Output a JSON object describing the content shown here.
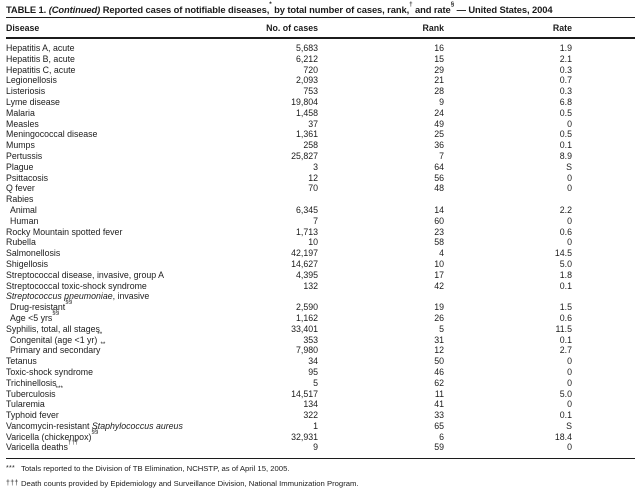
{
  "colors": {
    "background": "#ffffff",
    "text": "#1c1c1c",
    "rule": "#1c1c1c"
  },
  "title": {
    "label": "TABLE 1. ",
    "continued": "(Continued)",
    "part2": " Reported cases of notifiable diseases,",
    "sup1": "*",
    "part3": " by total number of cases, rank,",
    "sup2": "†",
    "part4": " and rate",
    "sup3": "§",
    "part5": " — United States, 2004"
  },
  "columns": {
    "disease": "Disease",
    "cases": "No. of cases",
    "rank": "Rank",
    "rate": "Rate"
  },
  "rows": [
    {
      "pre": "Hepatitis A, acute",
      "cases": "5,683",
      "rank": "16",
      "rate": "1.9"
    },
    {
      "pre": "Hepatitis B, acute",
      "cases": "6,212",
      "rank": "15",
      "rate": "2.1"
    },
    {
      "pre": "Hepatitis C, acute",
      "cases": "720",
      "rank": "29",
      "rate": "0.3"
    },
    {
      "pre": "Legionellosis",
      "cases": "2,093",
      "rank": "21",
      "rate": "0.7"
    },
    {
      "pre": "Listeriosis",
      "cases": "753",
      "rank": "28",
      "rate": "0.3"
    },
    {
      "pre": "Lyme disease",
      "cases": "19,804",
      "rank": "9",
      "rate": "6.8"
    },
    {
      "pre": "Malaria",
      "cases": "1,458",
      "rank": "24",
      "rate": "0.5"
    },
    {
      "pre": "Measles",
      "cases": "37",
      "rank": "49",
      "rate": "0"
    },
    {
      "pre": "Meningococcal disease",
      "cases": "1,361",
      "rank": "25",
      "rate": "0.5"
    },
    {
      "pre": "Mumps",
      "cases": "258",
      "rank": "36",
      "rate": "0.1"
    },
    {
      "pre": "Pertussis",
      "cases": "25,827",
      "rank": "7",
      "rate": "8.9"
    },
    {
      "pre": "Plague",
      "cases": "3",
      "rank": "64",
      "rate": "S"
    },
    {
      "pre": "Psittacosis",
      "cases": "12",
      "rank": "56",
      "rate": "0"
    },
    {
      "pre": "Q fever",
      "cases": "70",
      "rank": "48",
      "rate": "0"
    },
    {
      "pre": "Rabies",
      "cases": "",
      "rank": "",
      "rate": ""
    },
    {
      "pre": "Animal",
      "indent": 1,
      "cases": "6,345",
      "rank": "14",
      "rate": "2.2"
    },
    {
      "pre": "Human",
      "indent": 1,
      "cases": "7",
      "rank": "60",
      "rate": "0"
    },
    {
      "pre": "Rocky Mountain spotted fever",
      "cases": "1,713",
      "rank": "23",
      "rate": "0.6"
    },
    {
      "pre": "Rubella",
      "cases": "10",
      "rank": "58",
      "rate": "0"
    },
    {
      "pre": "Salmonellosis",
      "cases": "42,197",
      "rank": "4",
      "rate": "14.5"
    },
    {
      "pre": "Shigellosis",
      "cases": "14,627",
      "rank": "10",
      "rate": "5.0"
    },
    {
      "pre": "Streptococcal disease, invasive, group A",
      "cases": "4,395",
      "rank": "17",
      "rate": "1.8"
    },
    {
      "pre": "Streptococcal toxic-shock syndrome",
      "cases": "132",
      "rank": "42",
      "rate": "0.1"
    },
    {
      "italic": "Streptococcus pneumoniae",
      "post": ", invasive",
      "cases": "",
      "rank": "",
      "rate": ""
    },
    {
      "pre": "Drug-resistant",
      "sup": "§§",
      "indent": 1,
      "cases": "2,590",
      "rank": "19",
      "rate": "1.5"
    },
    {
      "pre": "Age <5 yrs",
      "sup": "§§",
      "indent": 1,
      "cases": "1,162",
      "rank": "26",
      "rate": "0.6"
    },
    {
      "pre": "Syphilis, total, all stages",
      "cases": "33,401",
      "rank": "5",
      "rate": "11.5"
    },
    {
      "pre": "Congenital (age <1 yr)",
      "sup": "**",
      "indent": 1,
      "cases": "353",
      "rank": "31",
      "rate": "0.1"
    },
    {
      "pre": "Primary and secondary",
      "sup": "**",
      "indent": 1,
      "cases": "7,980",
      "rank": "12",
      "rate": "2.7"
    },
    {
      "pre": "Tetanus",
      "cases": "34",
      "rank": "50",
      "rate": "0"
    },
    {
      "pre": "Toxic-shock syndrome",
      "cases": "95",
      "rank": "46",
      "rate": "0"
    },
    {
      "pre": "Trichinellosis",
      "cases": "5",
      "rank": "62",
      "rate": "0"
    },
    {
      "pre": "Tuberculosis",
      "sup": "***",
      "cases": "14,517",
      "rank": "11",
      "rate": "5.0"
    },
    {
      "pre": "Tularemia",
      "cases": "134",
      "rank": "41",
      "rate": "0"
    },
    {
      "pre": "Typhoid fever",
      "cases": "322",
      "rank": "33",
      "rate": "0.1"
    },
    {
      "pre": "Vancomycin-resistant ",
      "italic": "Staphylococcus aureus",
      "cases": "1",
      "rank": "65",
      "rate": "S"
    },
    {
      "pre": "Varicella (chickenpox)",
      "sup": "§§",
      "cases": "32,931",
      "rank": "6",
      "rate": "18.4"
    },
    {
      "pre": "Varicella deaths",
      "sup": "†††",
      "cases": "9",
      "rank": "59",
      "rate": "0"
    }
  ],
  "footnotes": [
    {
      "marker": "***",
      "text": "Totals reported to the Division of TB Elimination, NCHSTP, as of April 15, 2005."
    },
    {
      "marker": "†††",
      "text": "Death counts provided by Epidemiology and Surveillance Division, National Immunization Program."
    }
  ]
}
